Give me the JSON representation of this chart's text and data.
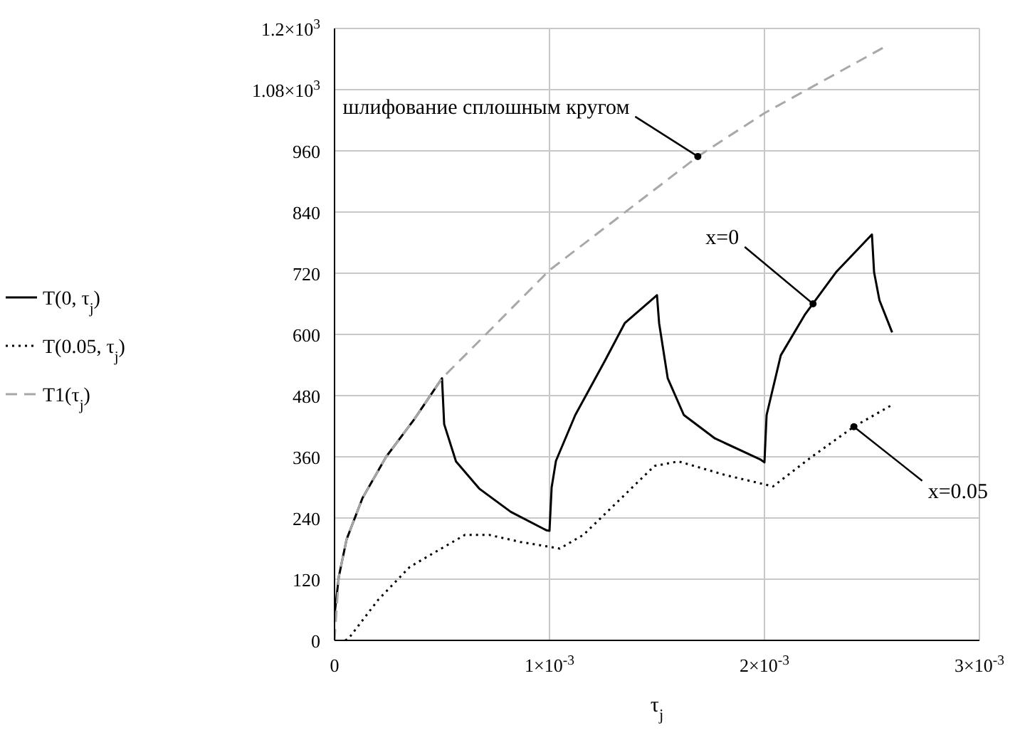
{
  "chart_data": {
    "type": "line",
    "xlabel": "τ$_{j}$",
    "xlim": [
      0,
      0.003
    ],
    "xticks": [
      0,
      {
        "value": 0.001,
        "label": "1×10$^{-3}$"
      },
      {
        "value": 0.002,
        "label": "2×10$^{-3}$"
      },
      {
        "value": 0.003,
        "label": "3×10$^{-3}$"
      }
    ],
    "ylim": [
      0,
      1200
    ],
    "yticks": [
      0,
      120,
      240,
      360,
      480,
      600,
      720,
      840,
      960,
      {
        "value": 1080,
        "label": "1.08×10$^{3}$"
      },
      {
        "value": 1200,
        "label": "1.2×10$^{3}$"
      }
    ],
    "grid": true,
    "legend": "left",
    "marker": "none",
    "series": [
      {
        "name": "T(0, τ$_{j}$)",
        "color": "#000000",
        "line_style": "solid",
        "x": [
          0,
          2e-05,
          5.6e-05,
          0.00013,
          0.00024,
          0.00037,
          0.0005,
          0.00051,
          0.000565,
          0.000675,
          0.00082,
          0.000985,
          0.001,
          0.00101,
          0.00103,
          0.00112,
          0.00126,
          0.00135,
          0.0015,
          0.00151,
          0.00155,
          0.001625,
          0.00177,
          0.00198,
          0.002,
          0.00201,
          0.002076,
          0.00219,
          0.002333,
          0.0025,
          0.00251,
          0.002535,
          0.002594
        ],
        "values": [
          50,
          125,
          198,
          279,
          360,
          433,
          514,
          424,
          351,
          297,
          252,
          216,
          215,
          300,
          352,
          442,
          550,
          622,
          677,
          622,
          514,
          442,
          396,
          355,
          349,
          442,
          559,
          640,
          722,
          796,
          722,
          667,
          604
        ]
      },
      {
        "name": "T(0.05, τ$_{j}$)",
        "color": "#000000",
        "line_style": "dotted",
        "x": [
          5e-05,
          6.6e-05,
          0.000204,
          0.00035,
          0.000496,
          0.000607,
          0.000718,
          0.000865,
          0.001048,
          0.001158,
          0.001268,
          0.001488,
          0.0016,
          0.00182,
          0.00204,
          0.00222,
          0.002416,
          0.00259
        ],
        "values": [
          0,
          4,
          80,
          144,
          180,
          207,
          207,
          193,
          180,
          207,
          252,
          342,
          351,
          324,
          302,
          360,
          419,
          461
        ]
      },
      {
        "name": "T1(τ$_{j}$)",
        "color": "#a8a8a8",
        "line_style": "dashed",
        "x": [
          0,
          2e-05,
          5.6e-05,
          0.00013,
          0.00024,
          0.00037,
          0.0005,
          0.00068,
          0.001,
          0.00169,
          0.002,
          0.00256
        ],
        "values": [
          0,
          125,
          198,
          279,
          360,
          433,
          514,
          590,
          726,
          949,
          1034,
          1164
        ]
      }
    ],
    "annotations": [
      {
        "text": "шлифование сплошным кругом",
        "x": 0.00169,
        "y": 949
      },
      {
        "text": "x=0",
        "x": 0.002226,
        "y": 660
      },
      {
        "text": "x=0.05",
        "x": 0.002416,
        "y": 419
      }
    ]
  }
}
